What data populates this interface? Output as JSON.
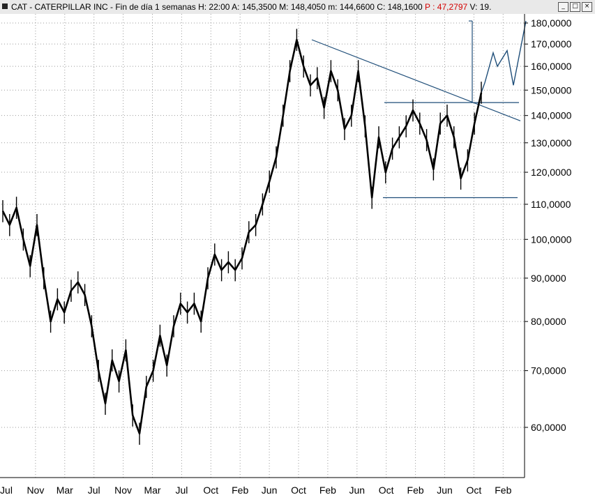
{
  "window": {
    "title_text": "CAT - CATERPILLAR INC - Fin de día 1 semanas  H: 22:00  A: 145,3500  M: 148,4050  m: 144,6600  C: 148,1600  ",
    "pct_text": "P : 47,2797",
    "volume_text": "  V: 19.",
    "btn_minimize": "_",
    "btn_maximize": "□",
    "btn_close": "×"
  },
  "chart_data": {
    "type": "line",
    "title": "CAT - CATERPILLAR INC",
    "ylim": [
      55,
      182
    ],
    "y_scale": "log",
    "y_ticks": [
      60,
      70,
      80,
      90,
      100,
      110,
      120,
      130,
      140,
      150,
      160,
      170,
      180
    ],
    "y_tick_labels": [
      "60,0000",
      "70,0000",
      "80,0000",
      "90,0000",
      "100,0000",
      "110,0000",
      "120,0000",
      "130,0000",
      "140,0000",
      "150,0000",
      "160,0000",
      "170,0000",
      "180,0000"
    ],
    "x_tick_labels": [
      "Jul",
      "Nov",
      "Mar",
      "Jul",
      "Nov",
      "Mar",
      "Jul",
      "Oct",
      "Feb",
      "Jun",
      "Oct",
      "Feb",
      "Jun",
      "Oct",
      "Feb",
      "Jun",
      "Oct",
      "Feb"
    ],
    "grid": true,
    "price_series": {
      "name": "CAT",
      "values": [
        108,
        104,
        109,
        100,
        93,
        104,
        90,
        80,
        85,
        82,
        87,
        89,
        86,
        79,
        70,
        64,
        72,
        68,
        74,
        62,
        59,
        67,
        70,
        77,
        71,
        79,
        84,
        82,
        84,
        80,
        90,
        96,
        92,
        94,
        92,
        95,
        102,
        104,
        110,
        117,
        125,
        140,
        158,
        172,
        160,
        152,
        155,
        143,
        158,
        150,
        135,
        140,
        158,
        136,
        112,
        132,
        120,
        128,
        132,
        136,
        142,
        137,
        131,
        121,
        137,
        140,
        132,
        118,
        124,
        137,
        149
      ],
      "projection": [
        149,
        153,
        166,
        160,
        167,
        152,
        181
      ]
    },
    "annotations": {
      "resistance_trendline": [
        172,
        138
      ],
      "horizontal_resistance": 145,
      "horizontal_support": 112,
      "projection_target": 181
    }
  }
}
